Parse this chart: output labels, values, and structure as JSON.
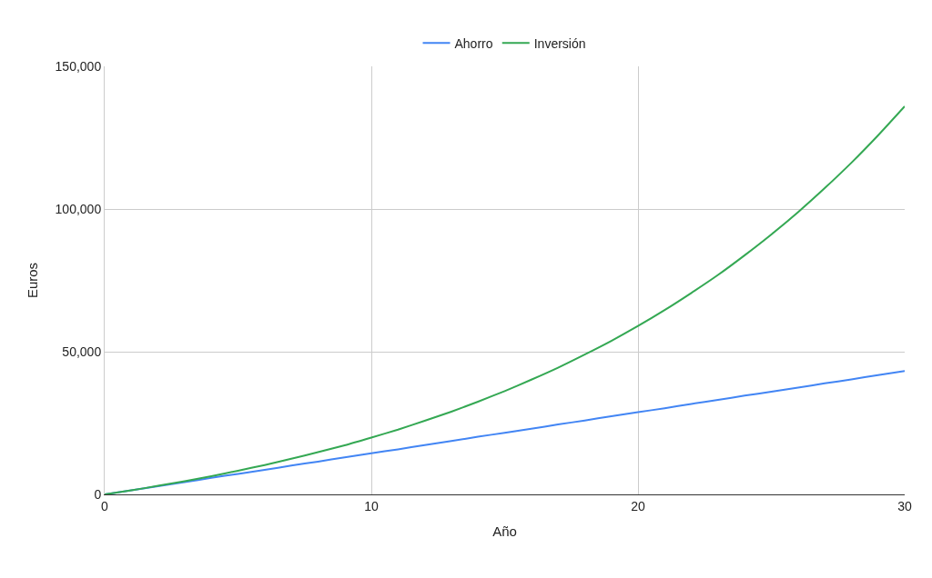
{
  "chart_data": {
    "type": "line",
    "xlabel": "Año",
    "ylabel": "Euros",
    "x": [
      0,
      1,
      2,
      3,
      4,
      5,
      6,
      7,
      8,
      9,
      10,
      11,
      12,
      13,
      14,
      15,
      16,
      17,
      18,
      19,
      20,
      21,
      22,
      23,
      24,
      25,
      26,
      27,
      28,
      29,
      30
    ],
    "series": [
      {
        "name": "Ahorro",
        "color": "#4285f4",
        "values": [
          0,
          1400,
          2900,
          4300,
          5800,
          7200,
          8600,
          10100,
          11500,
          13000,
          14400,
          15800,
          17300,
          18700,
          20200,
          21600,
          23000,
          24500,
          25900,
          27400,
          28800,
          30200,
          31700,
          33100,
          34600,
          36000,
          37400,
          38900,
          40300,
          41800,
          43200
        ]
      },
      {
        "name": "Inversión",
        "color": "#34a853",
        "values": [
          0,
          1400,
          3000,
          4600,
          6400,
          8300,
          10300,
          12500,
          14800,
          17200,
          19900,
          22700,
          25800,
          29000,
          32500,
          36200,
          40200,
          44400,
          49000,
          53800,
          59000,
          64600,
          70600,
          76900,
          83800,
          91100,
          98900,
          107300,
          116200,
          125800,
          136000
        ]
      }
    ],
    "xlim": [
      0,
      30
    ],
    "xticks": [
      0,
      10,
      20,
      30
    ],
    "ylim": [
      0,
      150000
    ],
    "yticks": [
      {
        "value": 0,
        "label": "0"
      },
      {
        "value": 50000,
        "label": "50,000"
      },
      {
        "value": 100000,
        "label": "100,000"
      },
      {
        "value": 150000,
        "label": "150,000"
      }
    ],
    "grid": true,
    "legend": "top",
    "marker": "none",
    "line_style": "solid"
  }
}
